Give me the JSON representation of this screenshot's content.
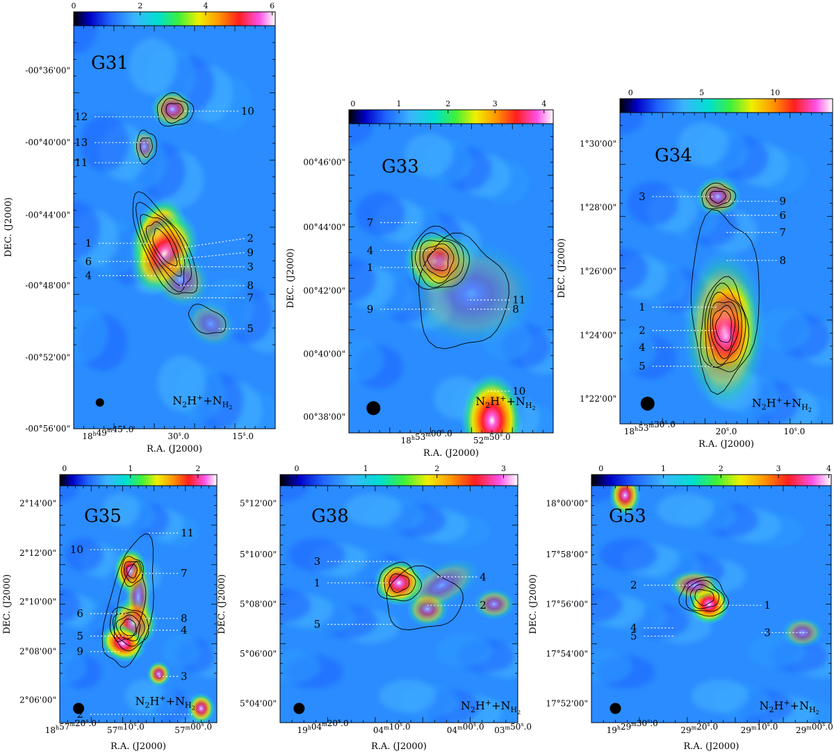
{
  "chart_data": [
    {
      "type": "heatmap",
      "title": "G31",
      "overlay_label": "N2H+ + NH2",
      "xlabel": "R.A. (J2000)",
      "ylabel": "DEC. (J2000)",
      "x_ticks": [
        "18h49m45.0s",
        "30.0s",
        "15.0s"
      ],
      "y_ticks": [
        "-00°36'00\"",
        "-00°40'00\"",
        "-00°44'00\"",
        "-00°48'00\"",
        "-00°52'00\"",
        "-00°56'00\""
      ],
      "colorbar_ticks": [
        "0",
        "2",
        "4",
        "6"
      ],
      "colorbar_range": [
        0,
        6.5
      ],
      "sources": [
        "1",
        "2",
        "3",
        "4",
        "5",
        "6",
        "7",
        "8",
        "9",
        "10",
        "11",
        "12",
        "13"
      ]
    },
    {
      "type": "heatmap",
      "title": "G33",
      "overlay_label": "N2H+ + NH2",
      "xlabel": "R.A. (J2000)",
      "ylabel": "DEC. (J2000)",
      "x_ticks": [
        "18h53m00.0s",
        "52m50.0s"
      ],
      "y_ticks": [
        "00°46'00\"",
        "00°44'00\"",
        "00°42'00\"",
        "00°40'00\"",
        "00°38'00\""
      ],
      "colorbar_ticks": [
        "0",
        "1",
        "2",
        "3",
        "4"
      ],
      "colorbar_range": [
        0,
        4.3
      ],
      "sources": [
        "1",
        "4",
        "7",
        "8",
        "9",
        "10",
        "11"
      ]
    },
    {
      "type": "heatmap",
      "title": "G34",
      "overlay_label": "N2H+ + NH2",
      "xlabel": "R.A. (J2000)",
      "ylabel": "DEC. (J2000)",
      "x_ticks": [
        "18h53m30.0s",
        "20.0s",
        "10.0s"
      ],
      "y_ticks": [
        "1°30'00\"",
        "1°28'00\"",
        "1°26'00\"",
        "1°24'00\"",
        "1°22'00\""
      ],
      "colorbar_ticks": [
        "0",
        "5",
        "10"
      ],
      "colorbar_range": [
        0,
        13.5
      ],
      "sources": [
        "1",
        "2",
        "3",
        "4",
        "5",
        "6",
        "7",
        "8",
        "9"
      ]
    },
    {
      "type": "heatmap",
      "title": "G35",
      "overlay_label": "N2H+ + NH2",
      "xlabel": "R.A. (J2000)",
      "ylabel": "DEC. (J2000)",
      "x_ticks": [
        "18h57m20.0s",
        "57m10.0s",
        "57m00.0s"
      ],
      "y_ticks": [
        "2°14'00\"",
        "2°12'00\"",
        "2°10'00\"",
        "2°08'00\"",
        "2°06'00\""
      ],
      "colorbar_ticks": [
        "0",
        "1",
        "2"
      ],
      "colorbar_range": [
        0,
        2.5
      ],
      "sources": [
        "2",
        "3",
        "4",
        "5",
        "6",
        "7",
        "8",
        "9",
        "10",
        "11"
      ]
    },
    {
      "type": "heatmap",
      "title": "G38",
      "overlay_label": "N2H+ + NH2",
      "xlabel": "R.A. (J2000)",
      "ylabel": "DEC. (J2000)",
      "x_ticks": [
        "19h04m20.0s",
        "04m10.0s",
        "04m00.0s",
        "03m50.0s"
      ],
      "y_ticks": [
        "5°12'00\"",
        "5°10'00\"",
        "5°08'00\"",
        "5°06'00\"",
        "5°04'00\""
      ],
      "colorbar_ticks": [
        "0",
        "1",
        "2",
        "3"
      ],
      "colorbar_range": [
        0,
        3.2
      ],
      "sources": [
        "1",
        "2",
        "3",
        "4",
        "5"
      ]
    },
    {
      "type": "heatmap",
      "title": "G53",
      "overlay_label": "N2H+ + NH2",
      "xlabel": "R.A. (J2000)",
      "ylabel": "DEC. (J2000)",
      "x_ticks": [
        "19h29m30.0s",
        "29m20.0s",
        "29m10.0s",
        "29m00.0s"
      ],
      "y_ticks": [
        "18°00'00\"",
        "17°58'00\"",
        "17°56'00\"",
        "17°54'00\"",
        "17°52'00\""
      ],
      "colorbar_ticks": [
        "0",
        "1",
        "2",
        "3",
        "4"
      ],
      "colorbar_range": [
        0,
        4.4
      ],
      "sources": [
        "1",
        "2",
        "3",
        "4",
        "5"
      ]
    }
  ]
}
